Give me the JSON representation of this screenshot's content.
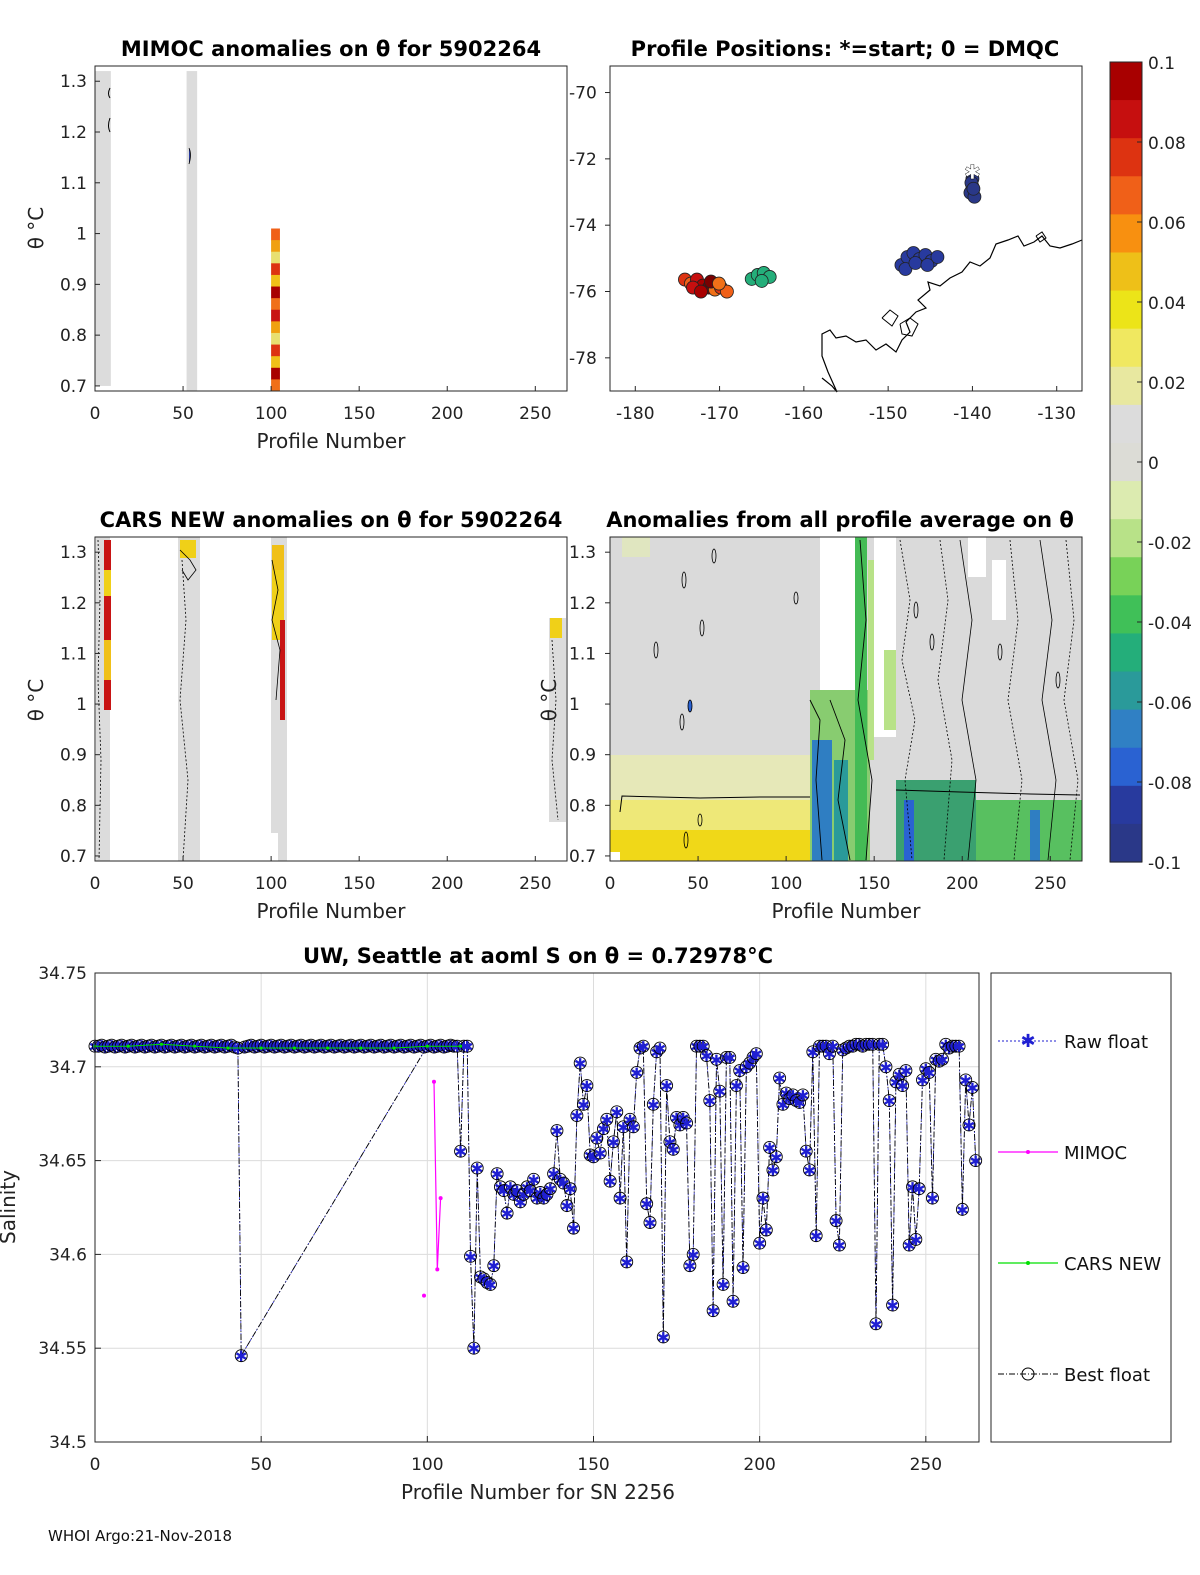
{
  "chart_data": [
    {
      "type": "heatmap",
      "title": "MIMOC anomalies on θ  for 5902264",
      "xlabel": "Profile Number",
      "ylabel": "θ °C",
      "xlim": [
        0,
        268
      ],
      "ylim": [
        0.69,
        1.33
      ],
      "xticks": [
        "0",
        "50",
        "100",
        "150",
        "200",
        "250"
      ],
      "yticks": [
        "0.7",
        "0.8",
        "0.9",
        "1",
        "1.1",
        "1.2",
        "1.3"
      ],
      "columns": [
        {
          "x0": 0,
          "x1": 9,
          "y0": 0.7,
          "y1": 1.32,
          "value": 0.0
        },
        {
          "x0": 52,
          "x1": 58,
          "y0": 0.69,
          "y1": 1.32,
          "value": 0.0
        },
        {
          "x0": 100,
          "x1": 105,
          "y0": 0.69,
          "y1": 1.01,
          "value": 0.07
        }
      ]
    },
    {
      "type": "scatter",
      "title": "Profile Positions: *=start; 0 = DMQC",
      "xlim": [
        -183,
        -127
      ],
      "ylim": [
        -79,
        -69.2
      ],
      "xticks": [
        "-180",
        "-170",
        "-160",
        "-150",
        "-140",
        "-130"
      ],
      "yticks": [
        "-70",
        "-72",
        "-74",
        "-76",
        "-78"
      ],
      "clusters": [
        {
          "lon": -140,
          "lat": -72.6,
          "n": 6,
          "anomaly": -0.1
        },
        {
          "lon": -147,
          "lat": -74.9,
          "n": 10,
          "anomaly": -0.085
        },
        {
          "lon": -165,
          "lat": -75.5,
          "n": 5,
          "anomaly": -0.045
        },
        {
          "lon": -171.5,
          "lat": -75.7,
          "n": 12,
          "anomaly": 0.08
        }
      ],
      "start": {
        "lon": -140,
        "lat": -72.4
      }
    },
    {
      "type": "heatmap",
      "title": "CARS NEW anomalies on θ for 5902264",
      "xlabel": "Profile Number",
      "ylabel": "θ °C",
      "xlim": [
        0,
        268
      ],
      "ylim": [
        0.69,
        1.33
      ],
      "xticks": [
        "0",
        "50",
        "100",
        "150",
        "200",
        "250"
      ],
      "yticks": [
        "0.7",
        "0.8",
        "0.9",
        "1",
        "1.1",
        "1.2",
        "1.3"
      ]
    },
    {
      "type": "heatmap",
      "title": "Anomalies from all profile average on θ",
      "xlabel": "Profile Number",
      "ylabel": "θ °C",
      "xlim": [
        0,
        268
      ],
      "ylim": [
        0.69,
        1.33
      ],
      "xticks": [
        "0",
        "50",
        "100",
        "150",
        "200",
        "250"
      ],
      "yticks": [
        "0.7",
        "0.8",
        "0.9",
        "1",
        "1.1",
        "1.2",
        "1.3"
      ]
    },
    {
      "type": "line",
      "title": "UW, Seattle at aoml S on θ = 0.72978°C",
      "xlabel": "Profile Number for SN 2256",
      "ylabel": "Salinity",
      "xlim": [
        0,
        266
      ],
      "ylim": [
        34.5,
        34.75
      ],
      "xticks": [
        0,
        50,
        100,
        150,
        200,
        250
      ],
      "yticks": [
        34.5,
        34.55,
        34.6,
        34.65,
        34.7,
        34.75
      ],
      "ytick_labels": [
        "34.5",
        "34.55",
        "34.6",
        "34.65",
        "34.7",
        "34.75"
      ],
      "legend": [
        "Raw float",
        "MIMOC",
        "CARS NEW",
        "Best float"
      ],
      "series": [
        {
          "name": "Best float",
          "x": [
            0,
            43,
            44,
            100,
            108,
            109,
            110,
            111,
            112,
            113,
            114,
            115,
            116,
            117,
            118,
            119,
            120,
            121,
            122,
            123,
            124,
            125,
            126,
            127,
            128,
            129,
            130,
            131,
            132,
            133,
            134,
            135,
            136,
            137,
            138,
            139,
            140,
            141,
            142,
            143,
            144,
            145,
            146,
            147,
            148,
            149,
            150,
            151,
            152,
            153,
            154,
            155,
            156,
            157,
            158,
            159,
            160,
            161,
            162,
            163,
            164,
            165,
            166,
            167,
            168,
            169,
            170,
            171,
            172,
            173,
            174,
            175,
            176,
            177,
            178,
            179,
            180,
            181,
            182,
            183,
            184,
            185,
            186,
            187,
            188,
            189,
            190,
            191,
            192,
            193,
            194,
            195,
            196,
            197,
            198,
            199,
            200,
            201,
            202,
            203,
            204,
            205,
            206,
            207,
            208,
            209,
            210,
            211,
            212,
            213,
            214,
            215,
            216,
            217,
            218,
            219,
            220,
            221,
            222,
            223,
            224,
            225,
            226,
            227,
            228,
            229,
            230,
            231,
            232,
            233,
            234,
            235,
            236,
            237,
            238,
            239,
            240,
            241,
            242,
            243,
            244,
            245,
            246,
            247,
            248,
            249,
            250,
            251,
            252,
            253,
            254,
            255,
            256,
            257,
            258,
            259,
            260,
            261,
            262,
            263,
            264,
            265
          ],
          "y": [
            34.711,
            34.71,
            34.546,
            34.711,
            34.711,
            34.711,
            34.655,
            34.711,
            34.711,
            34.599,
            34.55,
            34.646,
            34.588,
            34.587,
            34.585,
            34.584,
            34.594,
            34.643,
            34.636,
            34.634,
            34.622,
            34.636,
            34.632,
            34.634,
            34.628,
            34.632,
            34.636,
            34.634,
            34.64,
            34.63,
            34.633,
            34.63,
            34.632,
            34.635,
            34.643,
            34.666,
            34.64,
            34.638,
            34.626,
            34.635,
            34.614,
            34.674,
            34.702,
            34.68,
            34.69,
            34.653,
            34.652,
            34.662,
            34.654,
            34.667,
            34.672,
            34.639,
            34.66,
            34.676,
            34.63,
            34.668,
            34.596,
            34.672,
            34.668,
            34.697,
            34.71,
            34.711,
            34.627,
            34.617,
            34.68,
            34.708,
            34.71,
            34.556,
            34.69,
            34.66,
            34.656,
            34.673,
            34.669,
            34.673,
            34.67,
            34.594,
            34.6,
            34.711,
            34.711,
            34.711,
            34.706,
            34.682,
            34.57,
            34.704,
            34.687,
            34.584,
            34.705,
            34.705,
            34.575,
            34.69,
            34.698,
            34.593,
            34.7,
            34.702,
            34.705,
            34.707,
            34.606,
            34.63,
            34.613,
            34.657,
            34.645,
            34.652,
            34.694,
            34.68,
            34.686,
            34.683,
            34.685,
            34.682,
            34.681,
            34.685,
            34.655,
            34.645,
            34.708,
            34.61,
            34.711,
            34.711,
            34.711,
            34.707,
            34.711,
            34.618,
            34.605,
            34.709,
            34.71,
            34.711,
            34.711,
            34.712,
            34.712,
            34.711,
            34.712,
            34.712,
            34.712,
            34.563,
            34.712,
            34.712,
            34.7,
            34.682,
            34.573,
            34.692,
            34.696,
            34.69,
            34.698,
            34.605,
            34.636,
            34.608,
            34.635,
            34.693,
            34.699,
            34.697,
            34.63,
            34.704,
            34.703,
            34.704,
            34.712,
            34.71,
            34.711,
            34.711,
            34.711,
            34.624,
            34.693,
            34.669,
            34.689,
            34.65
          ]
        },
        {
          "name": "MIMOC",
          "x": [
            99,
            102,
            103,
            104
          ],
          "y": [
            34.578,
            34.692,
            34.592,
            34.63
          ]
        },
        {
          "name": "CARS NEW",
          "x": [
            0,
            10,
            20,
            30,
            40,
            50,
            60,
            70,
            80,
            90,
            100,
            110
          ],
          "y": [
            34.711,
            34.711,
            34.712,
            34.711,
            34.71,
            34.71,
            34.71,
            34.71,
            34.71,
            34.71,
            34.711,
            34.711
          ]
        }
      ]
    }
  ],
  "colorbar": {
    "labels": [
      "0.1",
      "0.08",
      "0.06",
      "0.04",
      "0.02",
      "0",
      "-0.02",
      "-0.04",
      "-0.06",
      "-0.08",
      "-0.1"
    ],
    "colors": [
      "#a80000",
      "#c60f0f",
      "#dd3311",
      "#f06018",
      "#f89010",
      "#eec018",
      "#ece418",
      "#f0e860",
      "#e8e8a0",
      "#dcdcdc",
      "#dcdcd6",
      "#dcebb0",
      "#b8e288",
      "#78d258",
      "#40c058",
      "#24ae7a",
      "#2a9a9a",
      "#3080c4",
      "#2a62d2",
      "#283a9e",
      "#2a3888"
    ]
  },
  "footer": "WHOI Argo:21-Nov-2018",
  "colors": {
    "raw": "#1f1fd2",
    "mimoc": "#ff00ff",
    "cars": "#00e000",
    "best": "#000000"
  }
}
